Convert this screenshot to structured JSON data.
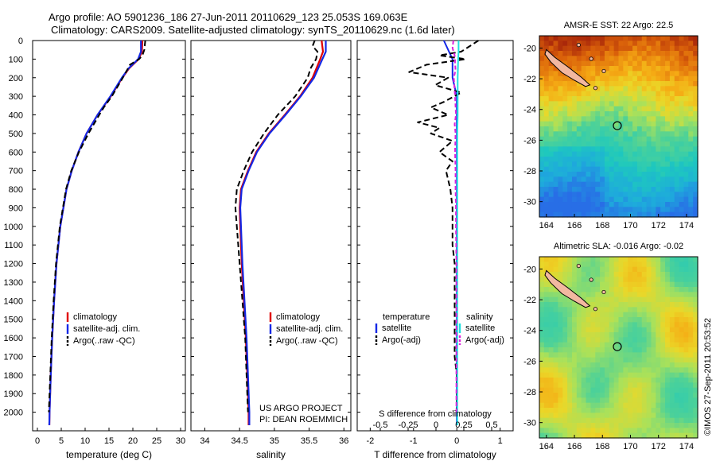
{
  "header": {
    "line1": "Argo profile: AO 5901236_186 27-Jun-2011 20110629_123 25.053S 169.063E",
    "line2": "Climatology: CARS2009. Satellite-adjusted climatology: synTS_20110629.nc (1.6d later)"
  },
  "stamp": "©IMOS 27-Sep-2011 20:53:52",
  "colors": {
    "climatology": "#e00000",
    "satellite": "#1428e6",
    "argo": "#000000",
    "sat_salinity": "#20e0e0",
    "argo_salinity": "#dd22dd"
  },
  "chart_data": [
    {
      "type": "line",
      "panel": "temperature",
      "xlabel": "temperature (deg C)",
      "ylabel": "",
      "xlim": [
        -1,
        31
      ],
      "ylim": [
        2100,
        0
      ],
      "xticks": [
        "0",
        "5",
        "10",
        "15",
        "20",
        "25",
        "30"
      ],
      "yticks": [
        "0",
        "100",
        "200",
        "300",
        "400",
        "500",
        "600",
        "700",
        "800",
        "900",
        "1000",
        "1100",
        "1200",
        "1300",
        "1400",
        "1500",
        "1600",
        "1700",
        "1800",
        "1900",
        "2000"
      ],
      "legend": [
        "climatology",
        "satellite-adj. clim.",
        "Argo(..raw -QC)"
      ],
      "series": [
        {
          "name": "climatology",
          "depth": [
            0,
            60,
            100,
            150,
            200,
            300,
            400,
            500,
            600,
            700,
            800,
            1000,
            1200,
            1400,
            1600,
            1800,
            2000,
            2070
          ],
          "values": [
            22.0,
            21.9,
            21.2,
            19.2,
            17.8,
            15.4,
            12.6,
            10.3,
            8.6,
            7.2,
            6.1,
            4.8,
            4.0,
            3.5,
            3.1,
            2.8,
            2.55,
            2.5
          ]
        },
        {
          "name": "satellite-adj. clim.",
          "depth": [
            0,
            60,
            100,
            150,
            200,
            300,
            400,
            500,
            600,
            700,
            800,
            1000,
            1200,
            1400,
            1600,
            1800,
            2000,
            2070
          ],
          "values": [
            21.7,
            21.7,
            21.1,
            19.1,
            17.7,
            15.3,
            12.6,
            10.3,
            8.6,
            7.2,
            6.1,
            4.8,
            4.0,
            3.5,
            3.1,
            2.8,
            2.55,
            2.5
          ]
        },
        {
          "name": "Argo(..raw -QC)",
          "depth": [
            0,
            50,
            80,
            100,
            130,
            200,
            300,
            360,
            420,
            500,
            600,
            700,
            800,
            1000,
            1200,
            1400,
            1600,
            1800,
            2000
          ],
          "values": [
            22.6,
            22.4,
            22.0,
            21.3,
            19.4,
            17.9,
            15.6,
            13.9,
            12.5,
            10.7,
            8.7,
            7.1,
            6.0,
            4.7,
            3.9,
            3.4,
            3.0,
            2.7,
            2.4
          ]
        }
      ]
    },
    {
      "type": "line",
      "panel": "salinity",
      "xlabel": "salinity",
      "xlim": [
        33.8,
        36.1
      ],
      "ylim": [
        2100,
        0
      ],
      "xticks": [
        "34",
        "34.5",
        "35",
        "35.5",
        "36"
      ],
      "legend": [
        "climatology",
        "satellite-adj. clim.",
        "Argo(..raw -QC)"
      ],
      "annotation": [
        "US ARGO PROJECT",
        "PI: DEAN ROEMMICH"
      ],
      "series": [
        {
          "name": "climatology",
          "depth": [
            0,
            60,
            100,
            200,
            300,
            400,
            500,
            600,
            700,
            800,
            900,
            1000,
            1200,
            1400,
            1600,
            1800,
            2000,
            2070
          ],
          "values": [
            35.68,
            35.7,
            35.66,
            35.55,
            35.37,
            35.15,
            34.92,
            34.74,
            34.62,
            34.52,
            34.5,
            34.51,
            34.53,
            34.56,
            34.59,
            34.61,
            34.63,
            34.63
          ]
        },
        {
          "name": "satellite-adj. clim.",
          "depth": [
            0,
            60,
            100,
            200,
            300,
            400,
            500,
            600,
            700,
            800,
            900,
            1000,
            1200,
            1400,
            1600,
            1800,
            2000,
            2070
          ],
          "values": [
            35.74,
            35.74,
            35.69,
            35.57,
            35.38,
            35.16,
            34.93,
            34.75,
            34.63,
            34.53,
            34.51,
            34.52,
            34.54,
            34.57,
            34.6,
            34.62,
            34.64,
            34.64
          ]
        },
        {
          "name": "Argo(..raw -QC)",
          "depth": [
            0,
            30,
            60,
            100,
            150,
            200,
            300,
            400,
            450,
            500,
            600,
            700,
            800,
            900,
            1000,
            1200,
            1400,
            1600,
            1800,
            2000
          ],
          "values": [
            35.58,
            35.55,
            35.62,
            35.6,
            35.52,
            35.48,
            35.3,
            35.05,
            34.95,
            34.85,
            34.68,
            34.56,
            34.46,
            34.44,
            34.46,
            34.5,
            34.54,
            34.58,
            34.6,
            34.62
          ]
        }
      ]
    },
    {
      "type": "line",
      "panel": "difference",
      "xlabel": "T difference from climatology",
      "xlabel_top": "S difference from climatology",
      "xlim": [
        -2.3,
        1.3
      ],
      "ylim": [
        2100,
        0
      ],
      "xticks": [
        "-2",
        "-1",
        "0",
        "1"
      ],
      "xticks_top": [
        "-0.5",
        "-0.25",
        "0",
        "0.25",
        "0.5"
      ],
      "legend_headers": [
        "temperature",
        "salinity"
      ],
      "legend": [
        "satellite",
        "Argo(-adj)",
        "satellite",
        "Argo(-adj)"
      ],
      "series": [
        {
          "name": "satellite",
          "group": "temperature",
          "depth": [
            0,
            100,
            200,
            300,
            400,
            500,
            600,
            800,
            1000,
            1200,
            1400,
            1600,
            1800,
            2000,
            2070
          ],
          "values": [
            -0.3,
            -0.1,
            -0.1,
            0.0,
            0.0,
            0.0,
            0.0,
            0.0,
            0.0,
            0.0,
            0.0,
            0.0,
            0.0,
            0.0,
            0.0
          ]
        },
        {
          "name": "Argo(-adj)",
          "group": "temperature",
          "depth": [
            0,
            30,
            60,
            80,
            100,
            130,
            170,
            200,
            240,
            280,
            330,
            360,
            400,
            440,
            470,
            500,
            540,
            600,
            650,
            700,
            800,
            900,
            1000,
            1100,
            1200,
            1300,
            1400,
            1500,
            1600,
            1700,
            1800,
            1900,
            2000
          ],
          "values": [
            0.5,
            0.3,
            0.1,
            -0.4,
            0.2,
            -0.7,
            -1.1,
            -0.2,
            -0.5,
            0.1,
            -0.3,
            -0.6,
            -0.2,
            -0.9,
            -0.4,
            -0.6,
            -0.1,
            -0.4,
            -0.1,
            -0.25,
            -0.15,
            -0.1,
            -0.1,
            -0.1,
            -0.05,
            -0.05,
            -0.05,
            -0.05,
            -0.05,
            -0.05,
            0.0,
            0.0,
            0.0
          ]
        },
        {
          "name": "satellite",
          "group": "salinity",
          "depth": [
            0,
            60,
            100,
            200,
            300,
            400,
            500,
            600,
            800,
            1000,
            1200,
            1400,
            1600,
            1800,
            2000,
            2070
          ],
          "values": [
            0.04,
            0.04,
            0.03,
            0.02,
            0.02,
            0.02,
            0.01,
            0.01,
            0.01,
            0.01,
            0.01,
            0.01,
            0.01,
            0.01,
            0.01,
            0.01
          ]
        },
        {
          "name": "Argo(-adj)",
          "group": "salinity",
          "depth": [
            0,
            40,
            80,
            120,
            160,
            200,
            300,
            400,
            450,
            500,
            600,
            700,
            800,
            900,
            1000,
            1200,
            1400,
            1600,
            1800,
            2000
          ],
          "values": [
            -0.08,
            -0.1,
            -0.05,
            -0.04,
            -0.03,
            -0.07,
            -0.04,
            -0.02,
            -0.05,
            -0.03,
            -0.04,
            -0.03,
            -0.03,
            -0.02,
            -0.02,
            -0.01,
            -0.01,
            -0.01,
            -0.01,
            -0.01
          ]
        }
      ]
    },
    {
      "type": "heatmap",
      "panel": "sst-map",
      "title": "AMSR-E SST: 22 Argo: 22.5",
      "xlim": [
        163.5,
        174.8
      ],
      "ylim": [
        -31.0,
        -19.2
      ],
      "xticks": [
        "164",
        "166",
        "168",
        "170",
        "172",
        "174"
      ],
      "yticks": [
        "-20",
        "-22",
        "-24",
        "-26",
        "-28",
        "-30"
      ],
      "profile_location": [
        169.063,
        -25.053
      ]
    },
    {
      "type": "heatmap",
      "panel": "sla-map",
      "title": "Altimetric SLA: -0.016 Argo: -0.02",
      "xlim": [
        163.5,
        174.8
      ],
      "ylim": [
        -31.0,
        -19.2
      ],
      "xticks": [
        "164",
        "166",
        "168",
        "170",
        "172",
        "174"
      ],
      "yticks": [
        "-20",
        "-22",
        "-24",
        "-26",
        "-28",
        "-30"
      ],
      "profile_location": [
        169.063,
        -25.053
      ]
    }
  ]
}
